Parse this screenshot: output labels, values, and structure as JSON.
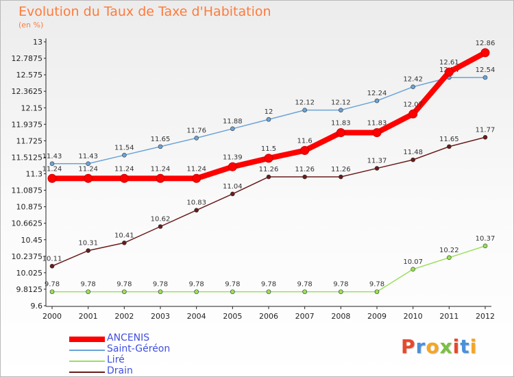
{
  "title": "Evolution du Taux de Taxe d'Habitation",
  "subtitle": "(en %)",
  "logo_text": "Proxiti",
  "logo_colors": [
    "#e8482a",
    "#4a90d9",
    "#f5a623",
    "#7bc043",
    "#e8482a",
    "#4a90d9",
    "#f5a623"
  ],
  "chart_data": {
    "type": "line",
    "title": "Evolution du Taux de Taxe d'Habitation",
    "subtitle": "(en %)",
    "xlabel": "",
    "ylabel": "",
    "x": [
      "2000",
      "2001",
      "2002",
      "2003",
      "2004",
      "2005",
      "2006",
      "2007",
      "2008",
      "2009",
      "2010",
      "2011",
      "2012"
    ],
    "ylim": [
      9.6,
      13
    ],
    "yticks": [
      "9.6",
      "9.8125",
      "10.025",
      "10.2375",
      "10.45",
      "10.6625",
      "10.875",
      "11.0875",
      "11.3",
      "11.5125",
      "11.725",
      "11.9375",
      "12.15",
      "12.3625",
      "12.575",
      "12.7875",
      "13"
    ],
    "grid": false,
    "legend_position": "bottom-left",
    "series": [
      {
        "name": "ANCENIS",
        "color": "#ff0000",
        "values": [
          11.24,
          11.24,
          11.24,
          11.24,
          11.24,
          11.39,
          11.5,
          11.6,
          11.83,
          11.83,
          12.07,
          12.61,
          12.86
        ],
        "labels": [
          "11.24",
          "11.24",
          "11.24",
          "11.24",
          "11.24",
          "11.39",
          "11.5",
          "11.6",
          "11.83",
          "11.83",
          "12.07",
          "12.61",
          "12.86"
        ]
      },
      {
        "name": "Saint-Géréon",
        "color": "#6aa3d8",
        "values": [
          11.43,
          11.43,
          11.54,
          11.65,
          11.76,
          11.88,
          12,
          12.12,
          12.12,
          12.24,
          12.42,
          12.54,
          12.54
        ],
        "labels": [
          "11.43",
          "11.43",
          "11.54",
          "11.65",
          "11.76",
          "11.88",
          "12",
          "12.12",
          "12.12",
          "12.24",
          "12.42",
          "12.54",
          "12.54"
        ]
      },
      {
        "name": "Liré",
        "color": "#99e05a",
        "values": [
          9.78,
          9.78,
          9.78,
          9.78,
          9.78,
          9.78,
          9.78,
          9.78,
          9.78,
          9.78,
          10.07,
          10.22,
          10.37
        ],
        "labels": [
          "9.78",
          "9.78",
          "9.78",
          "9.78",
          "9.78",
          "9.78",
          "9.78",
          "9.78",
          "9.78",
          "9.78",
          "10.07",
          "10.22",
          "10.37"
        ]
      },
      {
        "name": "Drain",
        "color": "#6b1a1a",
        "values": [
          10.11,
          10.31,
          10.41,
          10.62,
          10.83,
          11.04,
          11.26,
          11.26,
          11.26,
          11.37,
          11.48,
          11.65,
          11.77
        ],
        "labels": [
          "10.11",
          "10.31",
          "10.41",
          "10.62",
          "10.83",
          "11.04",
          "11.26",
          "11.26",
          "11.26",
          "11.37",
          "11.48",
          "11.65",
          "11.77"
        ]
      }
    ]
  }
}
